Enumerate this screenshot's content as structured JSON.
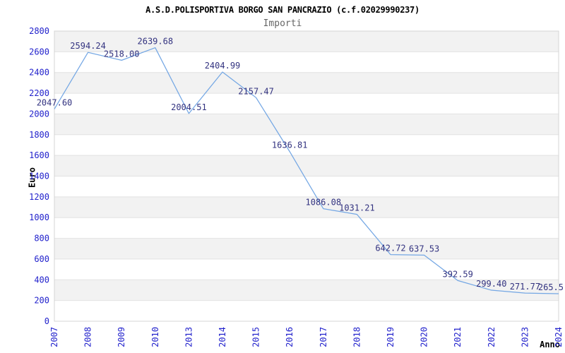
{
  "chart_data": {
    "type": "line",
    "title": "A.S.D.POLISPORTIVA BORGO SAN PANCRAZIO (c.f.02029990237)",
    "subtitle": "Importi",
    "xlabel": "Anno",
    "ylabel": "Euro",
    "categories": [
      "2007",
      "2008",
      "2009",
      "2010",
      "2013",
      "2014",
      "2015",
      "2016",
      "2017",
      "2018",
      "2019",
      "2020",
      "2021",
      "2022",
      "2023",
      "2024"
    ],
    "values": [
      2047.6,
      2594.24,
      2518.0,
      2639.68,
      2004.51,
      2404.99,
      2157.47,
      1636.81,
      1086.08,
      1031.21,
      642.72,
      637.53,
      392.59,
      299.4,
      271.77,
      265.5
    ],
    "point_labels": [
      "2047.60",
      "2594.24",
      "2518.00",
      "2639.68",
      "2004.51",
      "2404.99",
      "2157.47",
      "1636.81",
      "1086.08",
      "1031.21",
      "642.72",
      "637.53",
      "392.59",
      "299.40",
      "271.77",
      "265.5"
    ],
    "ylim": [
      0,
      2800
    ],
    "ytick_step": 200,
    "ytick_labels": [
      "0",
      "200",
      "400",
      "600",
      "800",
      "1000",
      "1200",
      "1400",
      "1600",
      "1800",
      "2000",
      "2200",
      "2400",
      "2600",
      "2800"
    ],
    "grid": "alternating-horizontal-bands",
    "legend": "none",
    "markers": "none",
    "colors": {
      "line": "#74a7e4",
      "tick_labels": "#2222cc",
      "point_labels": "#333380",
      "band": "#f2f2f2",
      "gridline": "#e2e2e2",
      "plot_border": "#d4d4d4",
      "title": "#000000",
      "subtitle": "#666666",
      "axis_titles": "#000000",
      "background": "#ffffff"
    }
  }
}
